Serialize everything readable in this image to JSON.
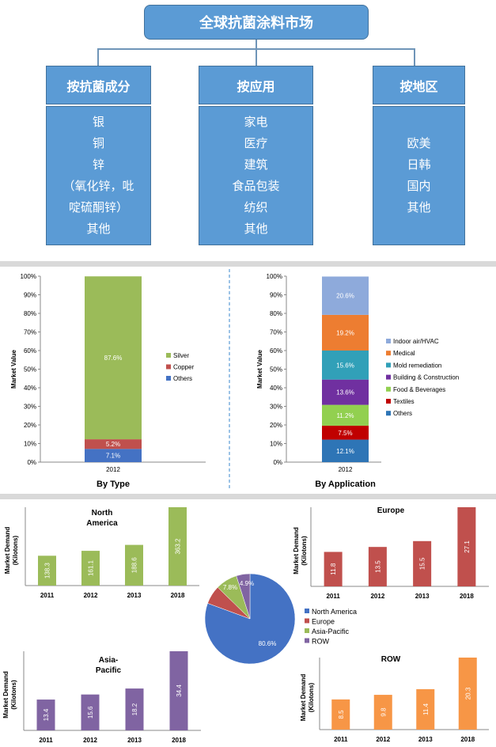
{
  "title": "全球抗菌涂料市场",
  "categories": [
    {
      "header": "按抗菌成分",
      "items": [
        "银",
        "铜",
        "锌",
        "（氧化锌，吡",
        "啶硫酮锌）",
        "其他"
      ]
    },
    {
      "header": "按应用",
      "items": [
        "家电",
        "医疗",
        "建筑",
        "食品包装",
        "纺织",
        "其他"
      ]
    },
    {
      "header": "按地区",
      "items": [
        "欧美",
        "日韩",
        "国内",
        "其他"
      ]
    }
  ],
  "chart_data": [
    {
      "type": "bar",
      "stacked": true,
      "caption": "By Type",
      "ylabel": "Market Value",
      "categories": [
        "2012"
      ],
      "yticks": [
        "0%",
        "10%",
        "20%",
        "30%",
        "40%",
        "50%",
        "60%",
        "70%",
        "80%",
        "90%",
        "100%"
      ],
      "ylim": [
        0,
        100
      ],
      "legend": "right",
      "series": [
        {
          "name": "Others",
          "values": [
            7.1
          ],
          "label": "7.1%",
          "color": "#4472c4"
        },
        {
          "name": "Copper",
          "values": [
            5.2
          ],
          "label": "5.2%",
          "color": "#c0504d"
        },
        {
          "name": "Silver",
          "values": [
            87.6
          ],
          "label": "87.6%",
          "color": "#9bbb59"
        }
      ]
    },
    {
      "type": "bar",
      "stacked": true,
      "caption": "By Application",
      "ylabel": "Market Value",
      "categories": [
        "2012"
      ],
      "yticks": [
        "0%",
        "10%",
        "20%",
        "30%",
        "40%",
        "50%",
        "60%",
        "70%",
        "80%",
        "90%",
        "100%"
      ],
      "ylim": [
        0,
        100
      ],
      "legend": "right",
      "series": [
        {
          "name": "Others",
          "values": [
            12.1
          ],
          "label": "12.1%",
          "color": "#2e75b6"
        },
        {
          "name": "Textiles",
          "values": [
            7.5
          ],
          "label": "7.5%",
          "color": "#c00000"
        },
        {
          "name": "Food & Beverages",
          "values": [
            11.2
          ],
          "label": "11.2%",
          "color": "#92d050"
        },
        {
          "name": "Building & Construction",
          "values": [
            13.6
          ],
          "label": "13.6%",
          "color": "#7030a0"
        },
        {
          "name": "Mold remediation",
          "values": [
            15.6
          ],
          "label": "15.6%",
          "color": "#31a0b8"
        },
        {
          "name": "Medical",
          "values": [
            19.2
          ],
          "label": "19.2%",
          "color": "#ed7d31"
        },
        {
          "name": "Indoor air/HVAC",
          "values": [
            20.6
          ],
          "label": "20.6%",
          "color": "#8eaadb"
        }
      ]
    },
    {
      "type": "bar",
      "title": "North\nAmerica",
      "ylabel": "Market Demand\n(Kilotons)",
      "categories": [
        "2011",
        "2012",
        "2013",
        "2018"
      ],
      "values": [
        138.3,
        161.1,
        188.6,
        363.2
      ],
      "labels": [
        "138.3",
        "161.1",
        "188.6",
        "363.2"
      ],
      "color": "#9bbb59"
    },
    {
      "type": "bar",
      "title": "Europe",
      "ylabel": "Market Demand\n(Kilotons)",
      "categories": [
        "2011",
        "2012",
        "2013",
        "2018"
      ],
      "values": [
        11.8,
        13.5,
        15.5,
        27.1
      ],
      "labels": [
        "11.8",
        "13.5",
        "15.5",
        "27.1"
      ],
      "color": "#c0504d"
    },
    {
      "type": "bar",
      "title": "Asia-\nPacific",
      "ylabel": "Market Demand\n(Kilotons)",
      "categories": [
        "2011",
        "2012",
        "2013",
        "2018"
      ],
      "values": [
        13.4,
        15.6,
        18.2,
        34.4
      ],
      "labels": [
        "13.4",
        "15.6",
        "18.2",
        "34.4"
      ],
      "color": "#8064a2"
    },
    {
      "type": "bar",
      "title": "ROW",
      "ylabel": "Market Demand\n(Kilotons)",
      "categories": [
        "2011",
        "2012",
        "2013",
        "2018"
      ],
      "values": [
        8.5,
        9.8,
        11.4,
        20.3
      ],
      "labels": [
        "8.5",
        "9.8",
        "11.4",
        "20.3"
      ],
      "color": "#f79646"
    },
    {
      "type": "pie",
      "legend": "right",
      "slices": [
        {
          "name": "North America",
          "value": 80.6,
          "label": "80.6%",
          "color": "#4472c4"
        },
        {
          "name": "Europe",
          "value": 6.7,
          "label": "6.7%",
          "color": "#c0504d"
        },
        {
          "name": "Asia-Pacific",
          "value": 7.8,
          "label": "7.8%",
          "color": "#9bbb59"
        },
        {
          "name": "ROW",
          "value": 4.9,
          "label": "4.9%",
          "color": "#8064a2"
        }
      ]
    }
  ]
}
